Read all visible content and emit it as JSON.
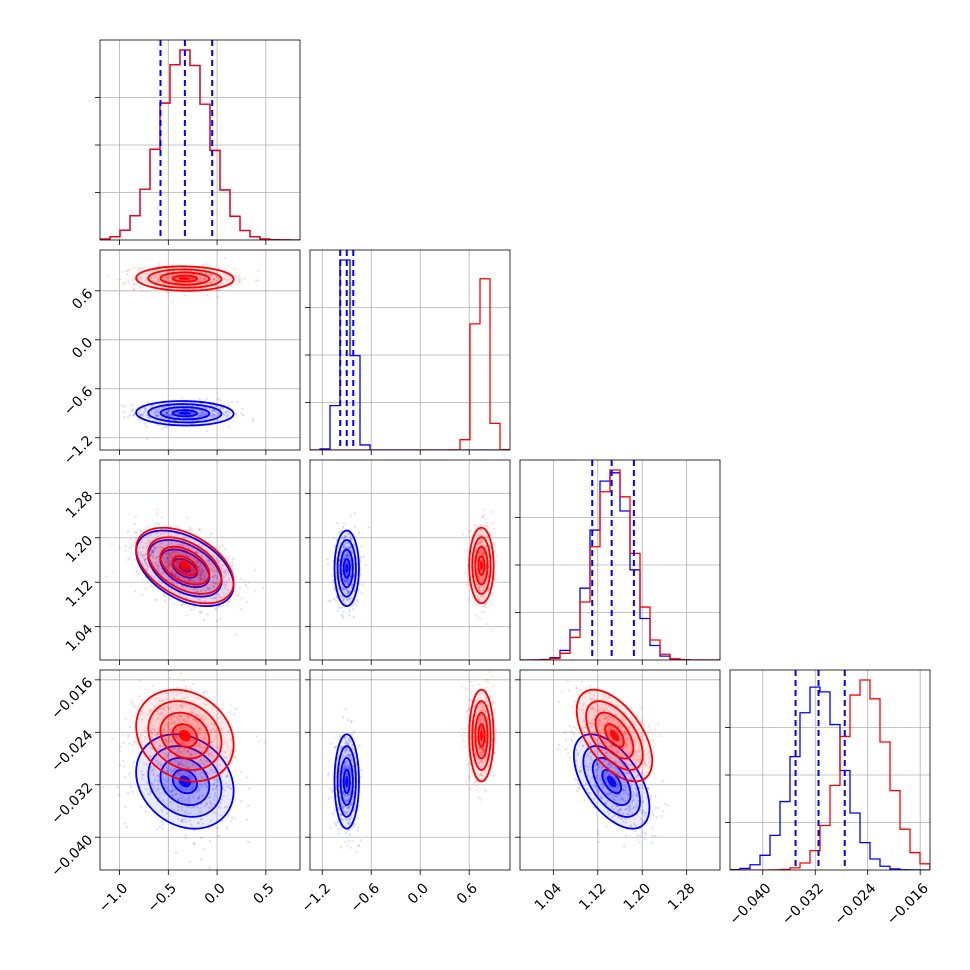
{
  "colors": {
    "series_a": "#0000ff",
    "series_b": "#ff0000",
    "quantile_line": "#0000ff",
    "grid": "#b0b0b0"
  },
  "chart_data": {
    "type": "corner",
    "n_params": 4,
    "grid": true,
    "quantile_line_style": "dashed",
    "ranges": [
      [
        -1.2,
        0.85
      ],
      [
        -1.35,
        1.1
      ],
      [
        0.98,
        1.34
      ],
      [
        -0.045,
        -0.0145
      ]
    ],
    "ticks": [
      [
        -1.0,
        -0.5,
        0.0,
        0.5
      ],
      [
        -1.2,
        -0.6,
        0.0,
        0.6
      ],
      [
        1.04,
        1.12,
        1.2,
        1.28
      ],
      [
        -0.04,
        -0.032,
        -0.024,
        -0.016
      ]
    ],
    "tick_labels": [
      [
        "−1.0",
        "−0.5",
        "0.0",
        "0.5"
      ],
      [
        "−1.2",
        "−0.6",
        "0.0",
        "0.6"
      ],
      [
        "1.04",
        "1.12",
        "1.20",
        "1.28"
      ],
      [
        "−0.040",
        "−0.032",
        "−0.024",
        "−0.016"
      ]
    ],
    "series": [
      {
        "color": "blue",
        "mean": [
          -0.33,
          -0.9,
          1.145,
          -0.0315
        ],
        "std": [
          0.25,
          0.075,
          0.034,
          0.0036
        ],
        "corr": {
          "0-1": -0.05,
          "0-2": -0.45,
          "0-3": -0.2,
          "1-2": 0.0,
          "1-3": 0.0,
          "2-3": -0.55
        },
        "quantiles": [
          [
            -0.58,
            -0.33,
            -0.05
          ],
          [
            -0.98,
            -0.9,
            -0.82
          ],
          [
            1.11,
            1.145,
            1.185
          ],
          [
            -0.035,
            -0.0315,
            -0.0275
          ]
        ]
      },
      {
        "color": "red",
        "mean": [
          -0.33,
          0.75,
          1.15,
          -0.0245
        ],
        "std": [
          0.25,
          0.075,
          0.034,
          0.0035
        ],
        "corr": {
          "0-1": -0.05,
          "0-2": -0.45,
          "0-3": -0.2,
          "1-2": 0.0,
          "1-3": 0.0,
          "2-3": -0.55
        }
      }
    ]
  }
}
